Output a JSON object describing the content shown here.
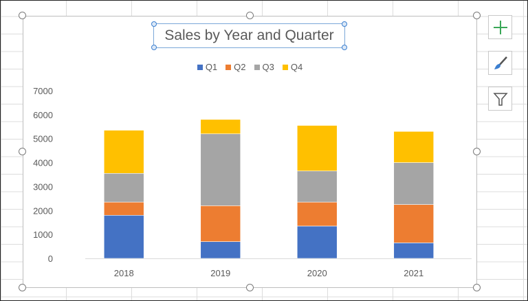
{
  "chart_data": {
    "type": "bar",
    "stacked": true,
    "title": "Sales by Year and Quarter",
    "categories": [
      "2018",
      "2019",
      "2020",
      "2021"
    ],
    "series": [
      {
        "name": "Q1",
        "color": "#4472C4",
        "values": [
          1800,
          700,
          1350,
          650
        ]
      },
      {
        "name": "Q2",
        "color": "#ED7D31",
        "values": [
          550,
          1500,
          1000,
          1600
        ]
      },
      {
        "name": "Q3",
        "color": "#A5A5A5",
        "values": [
          1200,
          3000,
          1300,
          1750
        ]
      },
      {
        "name": "Q4",
        "color": "#FFC000",
        "values": [
          1800,
          600,
          1900,
          1300
        ]
      }
    ],
    "ylim": [
      0,
      7000
    ],
    "yticks": [
      "0",
      "1000",
      "2000",
      "3000",
      "4000",
      "5000",
      "6000",
      "7000"
    ],
    "grid": false,
    "legend": "top"
  },
  "side_buttons": [
    {
      "name": "chart-elements",
      "icon": "plus-icon"
    },
    {
      "name": "chart-styles",
      "icon": "paintbrush-icon"
    },
    {
      "name": "chart-filters",
      "icon": "funnel-icon"
    }
  ]
}
